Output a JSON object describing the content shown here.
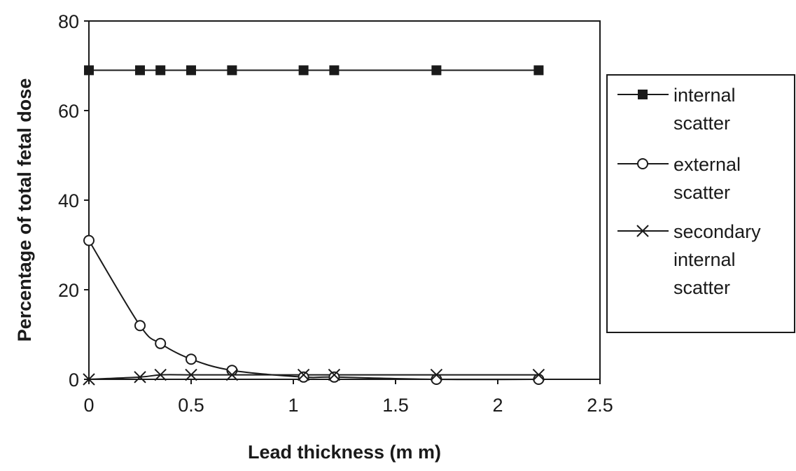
{
  "chart_data": {
    "type": "line",
    "title": "",
    "xlabel": "Lead thickness (m m)",
    "ylabel": "Percentage of total fetal dose",
    "xlim": [
      0,
      2.5
    ],
    "ylim": [
      0,
      80
    ],
    "x_ticks": [
      "0",
      "0.5",
      "1",
      "1.5",
      "2",
      "2.5"
    ],
    "y_ticks": [
      "0",
      "20",
      "40",
      "60",
      "80"
    ],
    "grid": false,
    "legend_position": "right",
    "series": [
      {
        "name": "internal scatter",
        "legend_lines": [
          "internal",
          "scatter"
        ],
        "marker": "filled-square",
        "smooth": false,
        "color": "#1a1a1a",
        "x": [
          0,
          0.25,
          0.35,
          0.5,
          0.7,
          1.05,
          1.2,
          1.7,
          2.2
        ],
        "y": [
          69,
          69,
          69,
          69,
          69,
          69,
          69,
          69,
          69
        ]
      },
      {
        "name": "external scatter",
        "legend_lines": [
          "external",
          "scatter"
        ],
        "marker": "open-circle",
        "smooth": true,
        "color": "#1a1a1a",
        "x": [
          0,
          0.25,
          0.35,
          0.5,
          0.7,
          1.05,
          1.2,
          1.7,
          2.2
        ],
        "y": [
          31,
          12,
          8,
          4.5,
          2,
          0.5,
          0.5,
          0,
          0
        ]
      },
      {
        "name": "secondary internal scatter",
        "legend_lines": [
          "secondary",
          "internal",
          "scatter"
        ],
        "marker": "x-cross",
        "smooth": true,
        "color": "#1a1a1a",
        "x": [
          0,
          0.25,
          0.35,
          0.5,
          0.7,
          1.05,
          1.2,
          1.7,
          2.2
        ],
        "y": [
          0,
          0.5,
          1,
          1,
          1,
          1,
          1,
          1,
          1
        ]
      }
    ]
  }
}
